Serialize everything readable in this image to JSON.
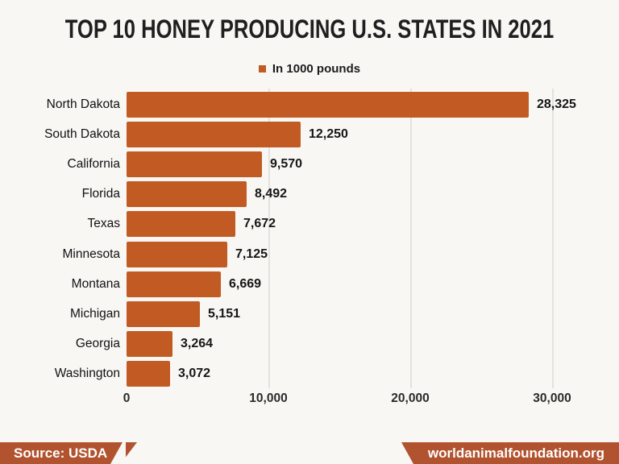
{
  "title": "TOP 10 HONEY PRODUCING U.S. STATES IN 2021",
  "legend": {
    "label": "In 1000 pounds"
  },
  "chart_data": {
    "type": "bar",
    "orientation": "horizontal",
    "title": "TOP 10 HONEY PRODUCING U.S. STATES IN 2021",
    "legend_entries": [
      "In 1000 pounds"
    ],
    "unit": "1000 pounds",
    "categories": [
      "North Dakota",
      "South Dakota",
      "California",
      "Florida",
      "Texas",
      "Minnesota",
      "Montana",
      "Michigan",
      "Georgia",
      "Washington"
    ],
    "values": [
      28325,
      12250,
      9570,
      8492,
      7672,
      7125,
      6669,
      5151,
      3264,
      3072
    ],
    "value_labels": [
      "28,325",
      "12,250",
      "9,570",
      "8,492",
      "7,672",
      "7,125",
      "6,669",
      "5,151",
      "3,264",
      "3,072"
    ],
    "x_ticks": [
      "0",
      "10,000",
      "20,000",
      "30,000"
    ],
    "x_tick_values": [
      0,
      10000,
      20000,
      30000
    ],
    "xlim": [
      0,
      30000
    ],
    "grid": "vertical-lines-at-ticks",
    "legend_position": "top-center",
    "xlabel": "",
    "ylabel": ""
  },
  "footer": {
    "source": "Source: USDA",
    "site": "worldanimalfoundation.org"
  },
  "colors": {
    "background": "#F8F7F4",
    "bar": "#C25A24",
    "legend_swatch": "#C25A24",
    "ribbon": "#B25330",
    "gridline": "#E3E2DF",
    "title_text": "#1F1F1F",
    "footer_text": "#FFFFFF"
  }
}
